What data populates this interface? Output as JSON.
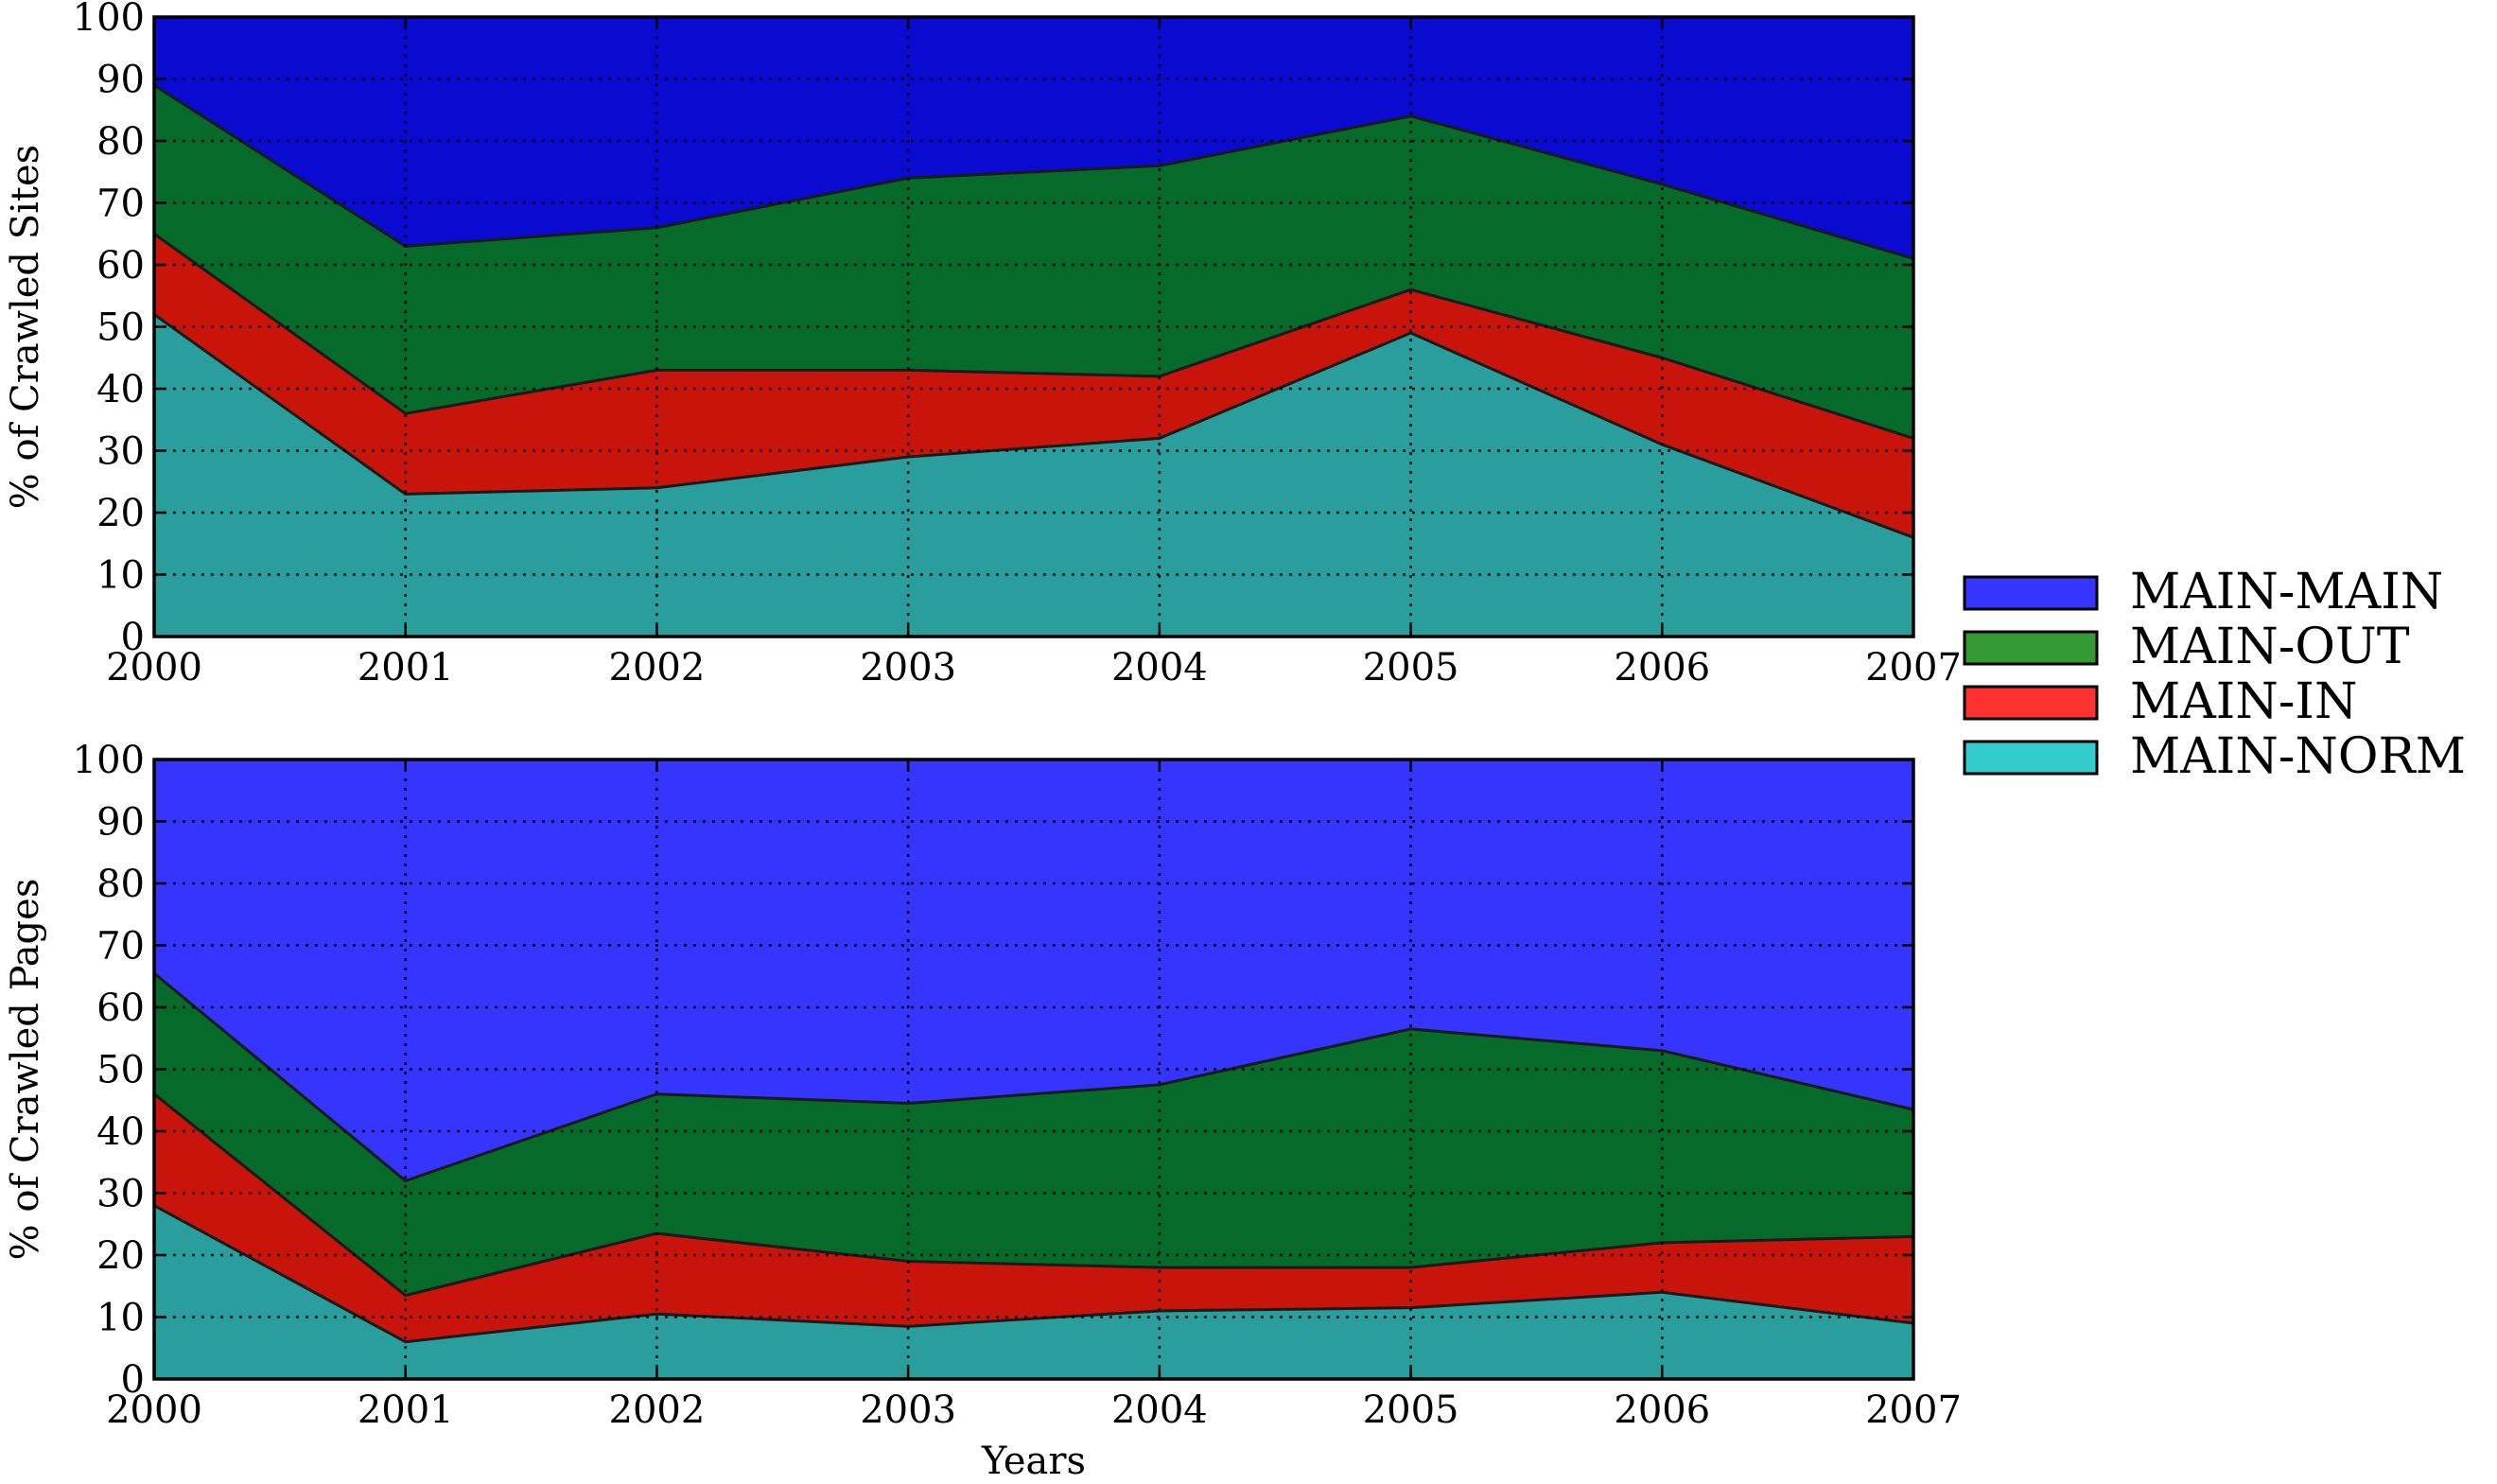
{
  "chart_data": [
    {
      "type": "area",
      "stacked": true,
      "x": [
        "2000",
        "2001",
        "2002",
        "2003",
        "2004",
        "2005",
        "2006",
        "2007"
      ],
      "ylabel": "% of Crawled Sites",
      "xlabel": "",
      "ylim": [
        0,
        100
      ],
      "yticks": [
        "0",
        "10",
        "20",
        "30",
        "40",
        "50",
        "60",
        "70",
        "80",
        "90",
        "100"
      ],
      "grid": true,
      "series": [
        {
          "name": "MAIN-NORM",
          "values": [
            52,
            23,
            24,
            29,
            32,
            49,
            31,
            16
          ]
        },
        {
          "name": "MAIN-IN",
          "values": [
            13,
            13,
            19,
            14,
            10,
            7,
            14,
            16
          ]
        },
        {
          "name": "MAIN-OUT",
          "values": [
            24,
            27,
            23,
            31,
            34,
            28,
            28,
            29
          ]
        },
        {
          "name": "MAIN-MAIN",
          "values": [
            11,
            37,
            34,
            26,
            24,
            16,
            27,
            39
          ]
        }
      ]
    },
    {
      "type": "area",
      "stacked": true,
      "x": [
        "2000",
        "2001",
        "2002",
        "2003",
        "2004",
        "2005",
        "2006",
        "2007"
      ],
      "ylabel": "% of Crawled Pages",
      "xlabel": "Years",
      "ylim": [
        0,
        100
      ],
      "yticks": [
        "0",
        "10",
        "20",
        "30",
        "40",
        "50",
        "60",
        "70",
        "80",
        "90",
        "100"
      ],
      "grid": true,
      "series": [
        {
          "name": "MAIN-NORM",
          "values": [
            28,
            6,
            10.5,
            8.5,
            11,
            11.5,
            14,
            9
          ]
        },
        {
          "name": "MAIN-IN",
          "values": [
            18,
            7.5,
            13,
            10.5,
            7,
            6.5,
            8,
            14
          ]
        },
        {
          "name": "MAIN-OUT",
          "values": [
            19.5,
            18.5,
            22.5,
            25.5,
            29.5,
            38.5,
            31,
            20.5
          ]
        },
        {
          "name": "MAIN-MAIN",
          "values": [
            34.5,
            68,
            54,
            55.5,
            52.5,
            43.5,
            47,
            56.5
          ]
        }
      ]
    }
  ],
  "legend": {
    "placement": "right",
    "items": [
      {
        "label": "MAIN-MAIN",
        "color": "#3535ff"
      },
      {
        "label": "MAIN-OUT",
        "color": "#339933"
      },
      {
        "label": "MAIN-IN",
        "color": "#ff3030"
      },
      {
        "label": "MAIN-NORM",
        "color": "#33cccc"
      }
    ]
  },
  "colors": {
    "MAIN-MAIN": "#0a0ad0",
    "MAIN-MAIN-bottom": "#3535ff",
    "MAIN-OUT": "#056a2a",
    "MAIN-IN": "#c8140a",
    "MAIN-NORM": "#2a9e9c"
  }
}
